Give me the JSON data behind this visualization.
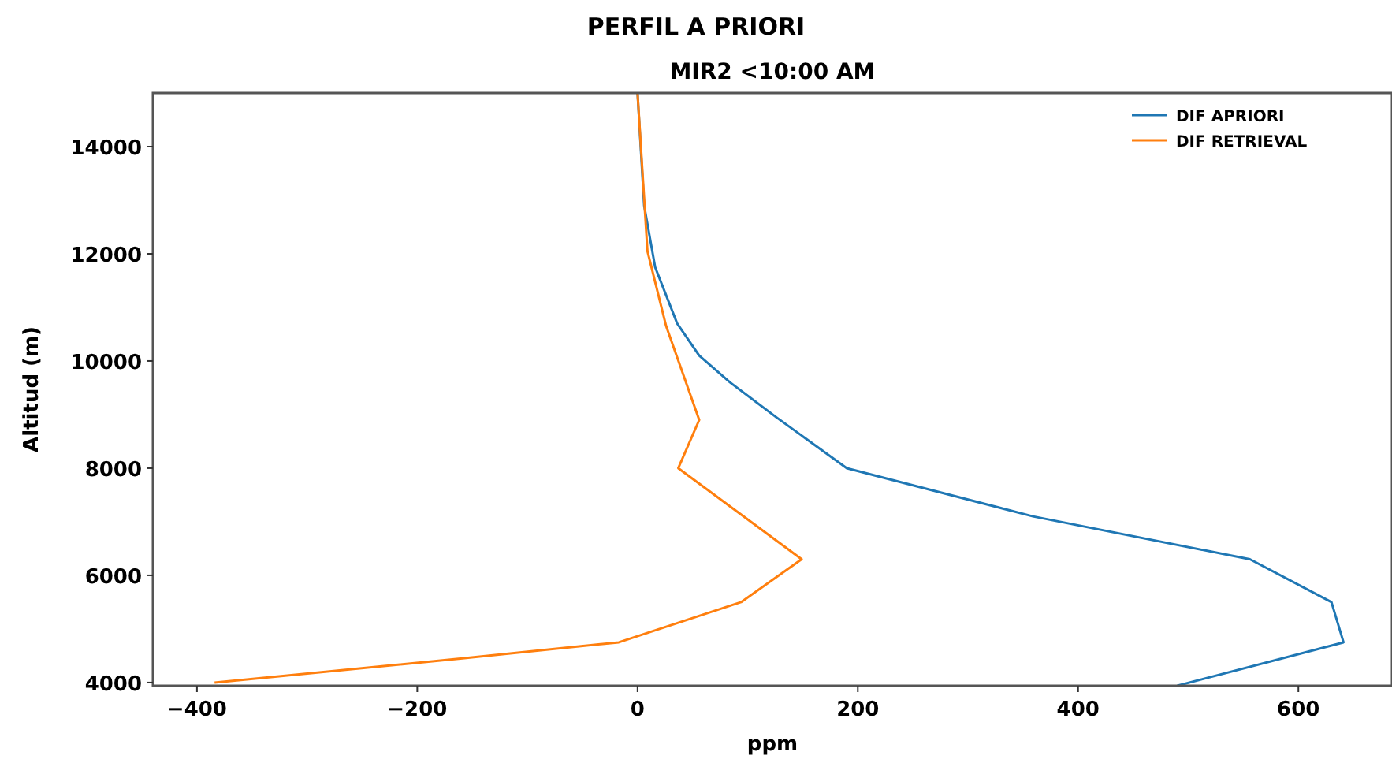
{
  "chart_data": {
    "type": "line",
    "title": "PERFIL A PRIORI",
    "subtitle": "MIR2 <10:00 AM",
    "xlabel": "ppm",
    "ylabel": "Altitud (m)",
    "xlim": [
      -440,
      685
    ],
    "ylim": [
      3940,
      15000
    ],
    "xticks": [
      -400,
      -200,
      0,
      200,
      400,
      600
    ],
    "yticks": [
      4000,
      6000,
      8000,
      10000,
      12000,
      14000
    ],
    "legend": "top right",
    "grid": false,
    "series": [
      {
        "name": "DIF APRIORI",
        "color": "#1f77b4",
        "x": [
          0,
          6,
          16,
          36,
          56,
          84,
          126,
          190,
          359,
          556,
          630,
          641,
          490
        ],
        "values": [
          15000,
          12900,
          11750,
          10700,
          10100,
          9600,
          8950,
          8000,
          7100,
          6300,
          5500,
          4750,
          3940
        ]
      },
      {
        "name": "DIF RETRIEVAL",
        "color": "#ff7f0e",
        "x": [
          0,
          9,
          26,
          56,
          37,
          149,
          94,
          -17,
          -159,
          -384
        ],
        "values": [
          15000,
          12050,
          10650,
          8900,
          8000,
          6300,
          5500,
          4750,
          4450,
          4000
        ]
      }
    ]
  }
}
